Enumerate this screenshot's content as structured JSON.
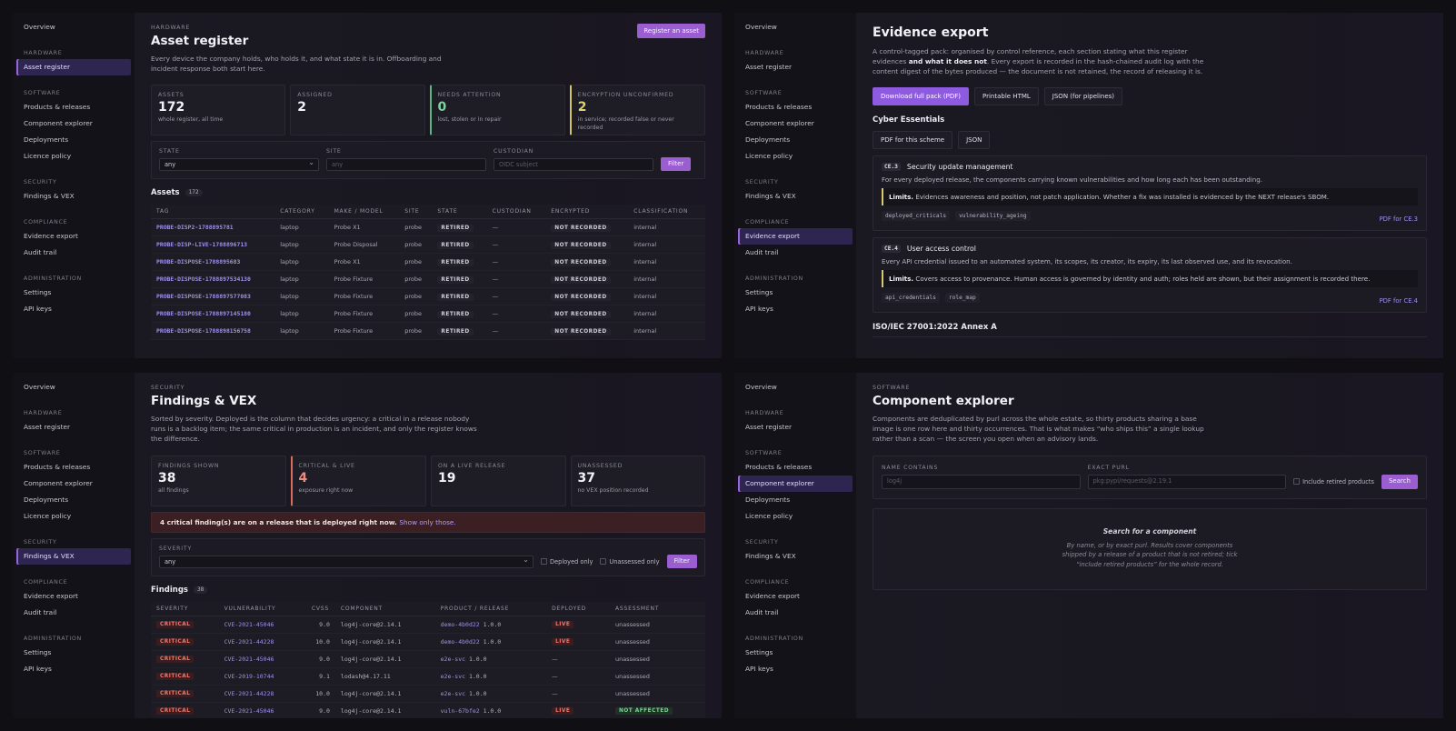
{
  "nav": {
    "overview": "Overview",
    "sections": {
      "hardware": "HARDWARE",
      "software": "SOFTWARE",
      "security": "SECURITY",
      "compliance": "COMPLIANCE",
      "administration": "ADMINISTRATION"
    },
    "asset_register": "Asset register",
    "products_releases": "Products & releases",
    "component_explorer": "Component explorer",
    "deployments": "Deployments",
    "licence_policy": "Licence policy",
    "findings_vex": "Findings & VEX",
    "evidence_export": "Evidence export",
    "audit_trail": "Audit trail",
    "settings": "Settings",
    "api_keys": "API keys"
  },
  "asset_register": {
    "eyebrow": "HARDWARE",
    "title": "Asset register",
    "lede": "Every device the company holds, who holds it, and what state it is in. Offboarding and incident response both start here.",
    "register_button": "Register an asset",
    "cards": [
      {
        "label": "ASSETS",
        "value": "172",
        "sub": "whole register, all time"
      },
      {
        "label": "ASSIGNED",
        "value": "2",
        "sub": ""
      },
      {
        "label": "NEEDS ATTENTION",
        "value": "0",
        "sub": "lost, stolen or in repair"
      },
      {
        "label": "ENCRYPTION UNCONFIRMED",
        "value": "2",
        "sub": "in service; recorded false or never recorded"
      }
    ],
    "filters": {
      "state_label": "STATE",
      "state_value": "any",
      "site_label": "SITE",
      "site_placeholder": "any",
      "custodian_label": "CUSTODIAN",
      "custodian_placeholder": "OIDC subject",
      "filter_button": "Filter"
    },
    "table_title": "Assets",
    "table_count": "172",
    "columns": [
      "TAG",
      "CATEGORY",
      "MAKE / MODEL",
      "SITE",
      "STATE",
      "CUSTODIAN",
      "ENCRYPTED",
      "CLASSIFICATION"
    ],
    "rows": [
      [
        "PROBE-DISP2-1788895781",
        "laptop",
        "Probe X1",
        "probe",
        "RETIRED",
        "—",
        "NOT RECORDED",
        "internal"
      ],
      [
        "PROBE-DISP-LIVE-1788896713",
        "laptop",
        "Probe Disposal",
        "probe",
        "RETIRED",
        "—",
        "NOT RECORDED",
        "internal"
      ],
      [
        "PROBE-DISPOSE-1788895683",
        "laptop",
        "Probe X1",
        "probe",
        "RETIRED",
        "—",
        "NOT RECORDED",
        "internal"
      ],
      [
        "PROBE-DISPOSE-1788897534130",
        "laptop",
        "Probe Fixture",
        "probe",
        "RETIRED",
        "—",
        "NOT RECORDED",
        "internal"
      ],
      [
        "PROBE-DISPOSE-1788897577083",
        "laptop",
        "Probe Fixture",
        "probe",
        "RETIRED",
        "—",
        "NOT RECORDED",
        "internal"
      ],
      [
        "PROBE-DISPOSE-1788897145180",
        "laptop",
        "Probe Fixture",
        "probe",
        "RETIRED",
        "—",
        "NOT RECORDED",
        "internal"
      ],
      [
        "PROBE-DISPOSE-1788898156758",
        "laptop",
        "Probe Fixture",
        "probe",
        "RETIRED",
        "—",
        "NOT RECORDED",
        "internal"
      ]
    ]
  },
  "evidence_export": {
    "title": "Evidence export",
    "lede_a": "A control-tagged pack: organised by control reference, each section stating what this register evidences ",
    "lede_bold": "and what it does not",
    "lede_b": ". Every export is recorded in the hash-chained audit log with the content digest of the bytes produced — the document is not retained, the record of releasing it is.",
    "buttons": [
      "Download full pack (PDF)",
      "Printable HTML",
      "JSON (for pipelines)"
    ],
    "scheme_title": "Cyber Essentials",
    "scheme_buttons": [
      "PDF for this scheme",
      "JSON"
    ],
    "controls": [
      {
        "code": "CE.3",
        "title": "Security update management",
        "desc": "For every deployed release, the components carrying known vulnerabilities and how long each has been outstanding.",
        "limits_label": "Limits.",
        "limits": "Evidences awareness and position, not patch application. Whether a fix was installed is evidenced by the NEXT release's SBOM.",
        "chips": [
          "deployed_criticals",
          "vulnerability_ageing"
        ],
        "pdf": "PDF for CE.3"
      },
      {
        "code": "CE.4",
        "title": "User access control",
        "desc": "Every API credential issued to an automated system, its scopes, its creator, its expiry, its last observed use, and its revocation.",
        "limits_label": "Limits.",
        "limits": "Covers access to provenance. Human access is governed by identity and auth; roles held are shown, but their assignment is recorded there.",
        "chips": [
          "api_credentials",
          "role_map"
        ],
        "pdf": "PDF for CE.4"
      }
    ],
    "next_scheme": "ISO/IEC 27001:2022 Annex A"
  },
  "findings": {
    "eyebrow": "SECURITY",
    "title": "Findings & VEX",
    "lede": "Sorted by severity. Deployed is the column that decides urgency: a critical in a release nobody runs is a backlog item; the same critical in production is an incident, and only the register knows the difference.",
    "cards": [
      {
        "label": "FINDINGS SHOWN",
        "value": "38",
        "sub": "all findings"
      },
      {
        "label": "CRITICAL & LIVE",
        "value": "4",
        "sub": "exposure right now"
      },
      {
        "label": "ON A LIVE RELEASE",
        "value": "19",
        "sub": ""
      },
      {
        "label": "UNASSESSED",
        "value": "37",
        "sub": "no VEX position recorded"
      }
    ],
    "alert": "4 critical finding(s) are on a release that is deployed right now.",
    "alert_link": "Show only those.",
    "filters": {
      "severity_label": "SEVERITY",
      "severity_value": "any",
      "deployed_only": "Deployed only",
      "unassessed_only": "Unassessed only",
      "filter_button": "Filter"
    },
    "table_title": "Findings",
    "table_count": "38",
    "columns": [
      "SEVERITY",
      "VULNERABILITY",
      "CVSS",
      "COMPONENT",
      "PRODUCT / RELEASE",
      "DEPLOYED",
      "ASSESSMENT"
    ],
    "rows": [
      [
        "CRITICAL",
        "CVE-2021-45046",
        "9.0",
        "log4j-core@2.14.1",
        "demo-4b0d22",
        "1.0.0",
        "LIVE",
        "unassessed"
      ],
      [
        "CRITICAL",
        "CVE-2021-44228",
        "10.0",
        "log4j-core@2.14.1",
        "demo-4b0d22",
        "1.0.0",
        "LIVE",
        "unassessed"
      ],
      [
        "CRITICAL",
        "CVE-2021-45046",
        "9.0",
        "log4j-core@2.14.1",
        "e2e-svc",
        "1.0.0",
        "—",
        "unassessed"
      ],
      [
        "CRITICAL",
        "CVE-2019-10744",
        "9.1",
        "lodash@4.17.11",
        "e2e-svc",
        "1.0.0",
        "—",
        "unassessed"
      ],
      [
        "CRITICAL",
        "CVE-2021-44228",
        "10.0",
        "log4j-core@2.14.1",
        "e2e-svc",
        "1.0.0",
        "—",
        "unassessed"
      ],
      [
        "CRITICAL",
        "CVE-2021-45046",
        "9.0",
        "log4j-core@2.14.1",
        "vuln-67bfe2",
        "1.0.0",
        "LIVE",
        "NOT AFFECTED"
      ]
    ]
  },
  "component_explorer": {
    "eyebrow": "SOFTWARE",
    "title": "Component explorer",
    "lede": "Components are deduplicated by purl across the whole estate, so thirty products sharing a base image is one row here and thirty occurrences. That is what makes “who ships this” a single lookup rather than a scan — the screen you open when an advisory lands.",
    "name_label": "NAME CONTAINS",
    "name_placeholder": "log4j",
    "purl_label": "EXACT PURL",
    "purl_placeholder": "pkg:pypi/requests@2.19.1",
    "include_retired": "Include retired products",
    "search_button": "Search",
    "empty_title": "Search for a component",
    "empty_desc": "By name, or by exact purl. Results cover components shipped by a release of a product that is not retired; tick “include retired products” for the whole record."
  }
}
